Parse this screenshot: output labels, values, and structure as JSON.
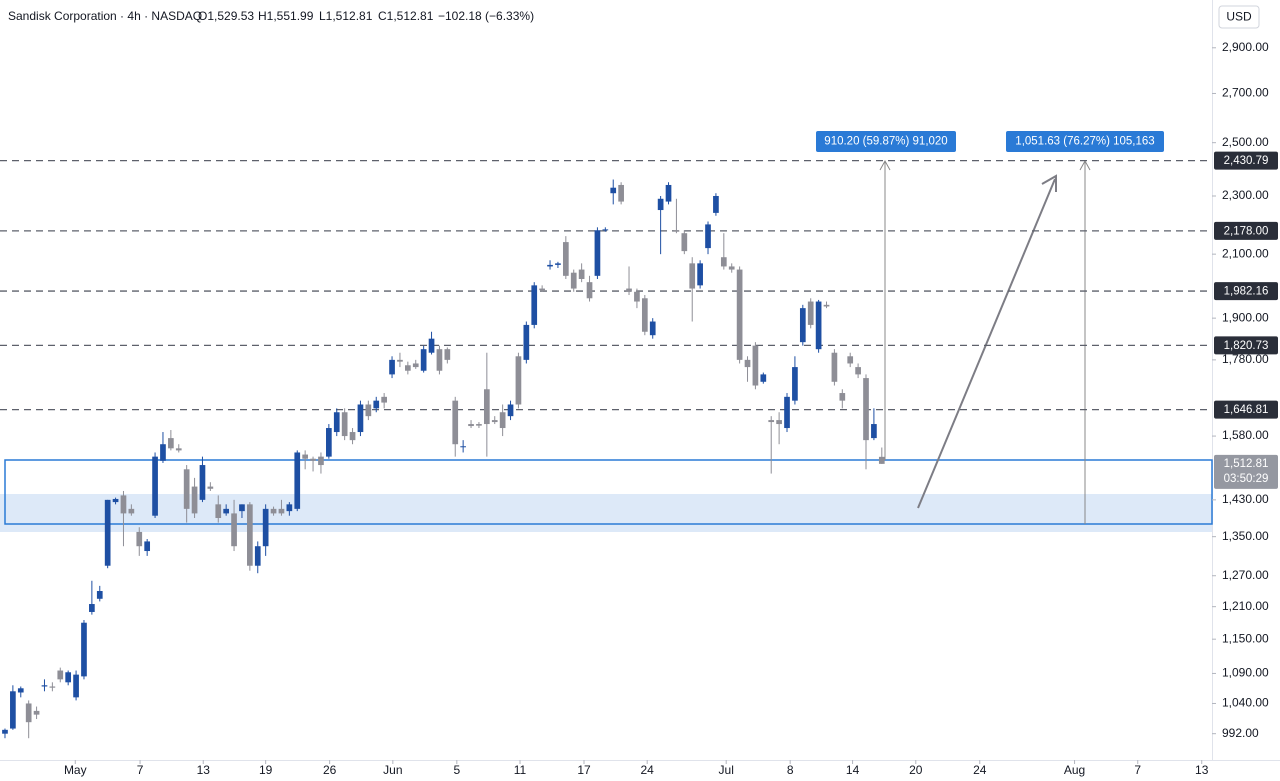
{
  "chart_data": {
    "type": "candlestick",
    "title": "Sandisk Corporation · 4h · NASDAQ",
    "ohlc_labels": [
      "O1,529.53",
      "H1,551.99",
      "L1,512.81",
      "C1,512.81"
    ],
    "change_label": "−102.18 (−6.33%)",
    "currency": "USD",
    "log_scale": true,
    "grid": false,
    "up_color": "#1e4fa3",
    "down_color": "#8e8e96",
    "ylim": [
      952,
      3125
    ],
    "xlim": [
      -0.63,
      152.8
    ],
    "yticks": [
      {
        "value": 2900,
        "label": "2,900.00"
      },
      {
        "value": 2700,
        "label": "2,700.00"
      },
      {
        "value": 2500,
        "label": "2,500.00"
      },
      {
        "value": 2300,
        "label": "2,300.00"
      },
      {
        "value": 2100,
        "label": "2,100.00"
      },
      {
        "value": 1900,
        "label": "1,900.00"
      },
      {
        "value": 1780,
        "label": "1,780.00"
      },
      {
        "value": 1580,
        "label": "1,580.00"
      },
      {
        "value": 1430,
        "label": "1,430.00"
      },
      {
        "value": 1350,
        "label": "1,350.00"
      },
      {
        "value": 1270,
        "label": "1,270.00"
      },
      {
        "value": 1210,
        "label": "1,210.00"
      },
      {
        "value": 1150,
        "label": "1,150.00"
      },
      {
        "value": 1090,
        "label": "1,090.00"
      },
      {
        "value": 1040,
        "label": "1,040.00"
      },
      {
        "value": 992,
        "label": "992.00"
      }
    ],
    "xticks": [
      {
        "value": 8.9,
        "label": "May"
      },
      {
        "value": 17.1,
        "label": "7"
      },
      {
        "value": 25.1,
        "label": "13"
      },
      {
        "value": 33.0,
        "label": "19"
      },
      {
        "value": 41.1,
        "label": "26"
      },
      {
        "value": 49.1,
        "label": "Jun"
      },
      {
        "value": 57.2,
        "label": "5"
      },
      {
        "value": 65.2,
        "label": "11"
      },
      {
        "value": 73.3,
        "label": "17"
      },
      {
        "value": 81.3,
        "label": "24"
      },
      {
        "value": 91.3,
        "label": "Jul"
      },
      {
        "value": 99.4,
        "label": "8"
      },
      {
        "value": 107.3,
        "label": "14"
      },
      {
        "value": 115.3,
        "label": "20"
      },
      {
        "value": 123.4,
        "label": "24"
      },
      {
        "value": 135.4,
        "label": "Aug"
      },
      {
        "value": 143.4,
        "label": "7"
      },
      {
        "value": 151.5,
        "label": "13"
      }
    ],
    "levels": [
      {
        "value": 2430.79,
        "label": "2,430.79"
      },
      {
        "value": 2178,
        "label": "2,178.00"
      },
      {
        "value": 1982.16,
        "label": "1,982.16"
      },
      {
        "value": 1820.73,
        "label": "1,820.73"
      },
      {
        "value": 1646.81,
        "label": "1,646.81"
      }
    ],
    "last_price": {
      "value": 1512.81,
      "label": "1,512.81"
    },
    "countdown": "03:50:29",
    "measurements": [
      "910.20 (59.87%) 91,020",
      "1,051.63 (76.27%) 105,163"
    ],
    "candles": [
      [
        992,
        1000,
        985,
        998
      ],
      [
        1000,
        1070,
        998,
        1060
      ],
      [
        1058,
        1068,
        1050,
        1065
      ],
      [
        1040,
        1045,
        985,
        1010
      ],
      [
        1028,
        1035,
        1015,
        1022
      ],
      [
        1068,
        1080,
        1060,
        1070
      ],
      [
        1068,
        1075,
        1060,
        1066
      ],
      [
        1095,
        1100,
        1075,
        1080
      ],
      [
        1075,
        1095,
        1070,
        1092
      ],
      [
        1050,
        1095,
        1045,
        1088
      ],
      [
        1085,
        1185,
        1080,
        1180
      ],
      [
        1200,
        1260,
        1195,
        1215
      ],
      [
        1225,
        1250,
        1220,
        1240
      ],
      [
        1290,
        1430,
        1285,
        1430
      ],
      [
        1425,
        1435,
        1420,
        1432
      ],
      [
        1440,
        1450,
        1330,
        1400
      ],
      [
        1410,
        1420,
        1395,
        1400
      ],
      [
        1360,
        1370,
        1310,
        1330
      ],
      [
        1320,
        1345,
        1310,
        1340
      ],
      [
        1395,
        1540,
        1390,
        1530
      ],
      [
        1520,
        1590,
        1515,
        1560
      ],
      [
        1575,
        1595,
        1545,
        1550
      ],
      [
        1550,
        1560,
        1540,
        1545
      ],
      [
        1500,
        1510,
        1380,
        1410
      ],
      [
        1460,
        1480,
        1390,
        1400
      ],
      [
        1430,
        1530,
        1425,
        1510
      ],
      [
        1460,
        1470,
        1450,
        1455
      ],
      [
        1420,
        1440,
        1380,
        1390
      ],
      [
        1400,
        1420,
        1395,
        1410
      ],
      [
        1400,
        1430,
        1320,
        1330
      ],
      [
        1405,
        1420,
        1390,
        1420
      ],
      [
        1420,
        1425,
        1280,
        1290
      ],
      [
        1290,
        1340,
        1275,
        1330
      ],
      [
        1330,
        1420,
        1310,
        1410
      ],
      [
        1410,
        1415,
        1395,
        1400
      ],
      [
        1410,
        1430,
        1395,
        1400
      ],
      [
        1405,
        1425,
        1395,
        1420
      ],
      [
        1410,
        1545,
        1405,
        1540
      ],
      [
        1535,
        1545,
        1500,
        1525
      ],
      [
        1525,
        1530,
        1495,
        1520
      ],
      [
        1530,
        1540,
        1490,
        1510
      ],
      [
        1530,
        1610,
        1525,
        1600
      ],
      [
        1590,
        1650,
        1580,
        1640
      ],
      [
        1640,
        1650,
        1570,
        1580
      ],
      [
        1590,
        1600,
        1560,
        1570
      ],
      [
        1590,
        1670,
        1580,
        1660
      ],
      [
        1660,
        1670,
        1620,
        1630
      ],
      [
        1650,
        1680,
        1640,
        1670
      ],
      [
        1680,
        1690,
        1650,
        1665
      ],
      [
        1740,
        1790,
        1730,
        1780
      ],
      [
        1780,
        1800,
        1760,
        1775
      ],
      [
        1765,
        1775,
        1740,
        1750
      ],
      [
        1770,
        1780,
        1755,
        1760
      ],
      [
        1750,
        1820,
        1745,
        1810
      ],
      [
        1800,
        1860,
        1795,
        1840
      ],
      [
        1810,
        1820,
        1740,
        1750
      ],
      [
        1810,
        1815,
        1770,
        1780
      ],
      [
        1670,
        1680,
        1530,
        1560
      ],
      [
        1555,
        1570,
        1540,
        1555
      ],
      [
        1610,
        1620,
        1600,
        1605
      ],
      [
        1610,
        1615,
        1600,
        1606
      ],
      [
        1700,
        1800,
        1530,
        1610
      ],
      [
        1620,
        1630,
        1610,
        1615
      ],
      [
        1640,
        1660,
        1580,
        1600
      ],
      [
        1630,
        1670,
        1620,
        1660
      ],
      [
        1790,
        1800,
        1650,
        1660
      ],
      [
        1780,
        1890,
        1770,
        1880
      ],
      [
        1880,
        2010,
        1870,
        2000
      ],
      [
        1990,
        2000,
        1980,
        1985
      ],
      [
        2060,
        2080,
        2050,
        2065
      ],
      [
        2065,
        2075,
        2055,
        2070
      ],
      [
        2140,
        2160,
        2020,
        2030
      ],
      [
        2040,
        2050,
        1980,
        1990
      ],
      [
        2050,
        2070,
        2010,
        2020
      ],
      [
        2010,
        2030,
        1950,
        1960
      ],
      [
        2030,
        2190,
        2020,
        2180
      ],
      [
        2180,
        2190,
        2175,
        2183
      ],
      [
        2310,
        2360,
        2270,
        2330
      ],
      [
        2340,
        2350,
        2270,
        2280
      ],
      [
        1990,
        2060,
        1970,
        1980
      ],
      [
        1980,
        1990,
        1930,
        1950
      ],
      [
        1960,
        1970,
        1850,
        1860
      ],
      [
        1850,
        1900,
        1840,
        1890
      ],
      [
        2250,
        2300,
        2100,
        2290
      ],
      [
        2280,
        2350,
        2270,
        2340
      ],
      [
        2180,
        2290,
        2170,
        2175
      ],
      [
        2170,
        2180,
        2100,
        2110
      ],
      [
        2070,
        2090,
        1890,
        1990
      ],
      [
        2000,
        2080,
        1990,
        2070
      ],
      [
        2120,
        2210,
        2100,
        2200
      ],
      [
        2240,
        2310,
        2230,
        2300
      ],
      [
        2090,
        2170,
        2050,
        2060
      ],
      [
        2060,
        2070,
        2040,
        2050
      ],
      [
        2050,
        2060,
        1770,
        1780
      ],
      [
        1780,
        1790,
        1720,
        1760
      ],
      [
        1820,
        1830,
        1700,
        1710
      ],
      [
        1720,
        1745,
        1715,
        1740
      ],
      [
        1620,
        1630,
        1490,
        1615
      ],
      [
        1620,
        1640,
        1560,
        1610
      ],
      [
        1600,
        1690,
        1590,
        1680
      ],
      [
        1670,
        1790,
        1660,
        1760
      ],
      [
        1830,
        1940,
        1820,
        1930
      ],
      [
        1950,
        1960,
        1870,
        1880
      ],
      [
        1810,
        1955,
        1800,
        1950
      ],
      [
        1940,
        1950,
        1930,
        1935
      ],
      [
        1800,
        1810,
        1710,
        1720
      ],
      [
        1690,
        1700,
        1650,
        1670
      ],
      [
        1790,
        1800,
        1760,
        1770
      ],
      [
        1760,
        1770,
        1730,
        1740
      ],
      [
        1730,
        1740,
        1500,
        1570
      ],
      [
        1575,
        1650,
        1570,
        1610
      ],
      [
        1529.53,
        1551.99,
        1512.81,
        1512.81
      ]
    ]
  }
}
